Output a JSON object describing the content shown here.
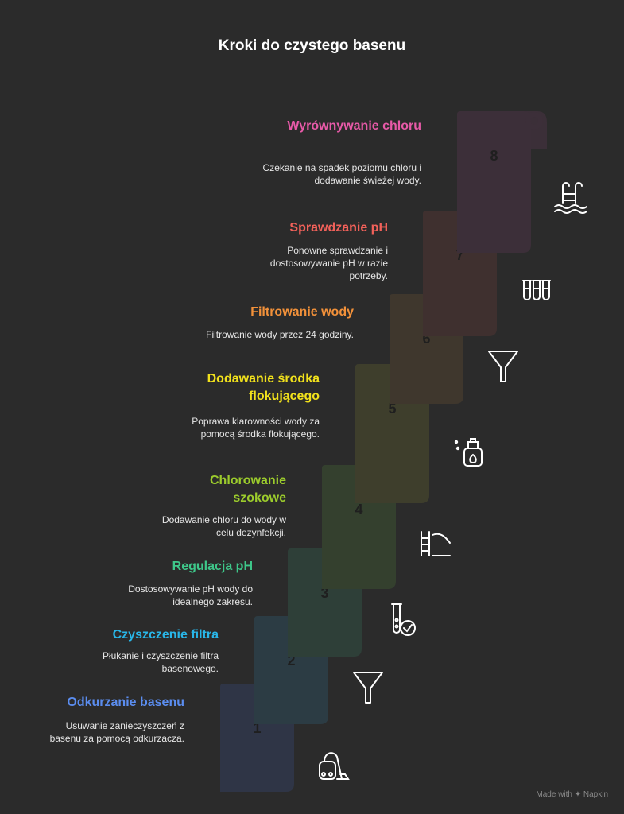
{
  "title": "Kroki do czystego basenu",
  "watermark": "Made with ✦ Napkin",
  "steps": [
    {
      "number": "1",
      "title": "Odkurzanie basenu",
      "description": "Usuwanie zanieczyszczeń z basenu za pomocą odkurzacza.",
      "color": "#5b8def",
      "icon": "vacuum-cleaner-icon"
    },
    {
      "number": "2",
      "title": "Czyszczenie filtra",
      "description": "Płukanie i czyszczenie filtra basenowego.",
      "color": "#29b6e8",
      "icon": "funnel-icon"
    },
    {
      "number": "3",
      "title": "Regulacja pH",
      "description": "Dostosowywanie pH wody do idealnego zakresu.",
      "color": "#3ec78a",
      "icon": "test-tube-check-icon"
    },
    {
      "number": "4",
      "title": "Chlorowanie szokowe",
      "description": "Dodawanie chloru do wody w celu dezynfekcji.",
      "color": "#9ccc2c",
      "icon": "pool-ladder-icon"
    },
    {
      "number": "5",
      "title": "Dodawanie środka flokującego",
      "description": "Poprawa klarowności wody za pomocą środka flokującego.",
      "color": "#f1e11c",
      "icon": "spray-bottle-icon"
    },
    {
      "number": "6",
      "title": "Filtrowanie wody",
      "description": "Filtrowanie wody przez 24 godziny.",
      "color": "#f2913a",
      "icon": "funnel-icon"
    },
    {
      "number": "7",
      "title": "Sprawdzanie pH",
      "description": "Ponowne sprawdzanie i dostosowywanie pH w razie potrzeby.",
      "color": "#f2615a",
      "icon": "test-tubes-icon"
    },
    {
      "number": "8",
      "title": "Wyrównywanie chloru",
      "description": "Czekanie na spadek poziomu chloru i dodawanie świeżej wody.",
      "color": "#e85aa8",
      "icon": "swimming-pool-icon"
    }
  ]
}
